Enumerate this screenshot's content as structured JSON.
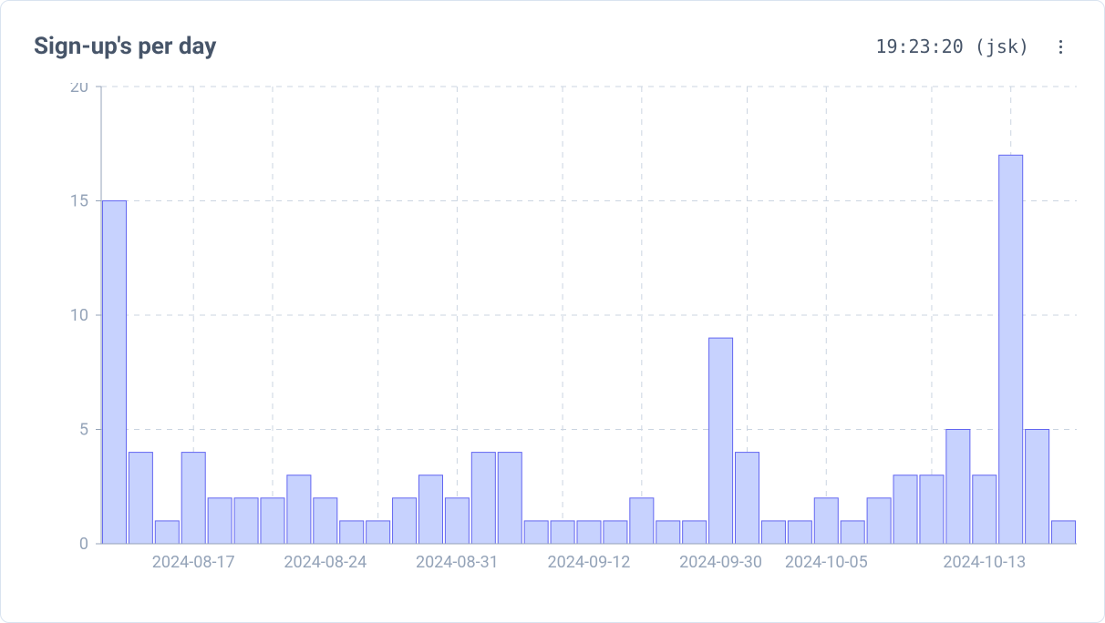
{
  "header": {
    "title": "Sign-up's per day",
    "timestamp": "19:23:20 (jsk)"
  },
  "chart": {
    "type": "bar",
    "y": {
      "lim": [
        0,
        20
      ],
      "ticks": [
        0,
        5,
        10,
        15,
        20
      ],
      "tick_fontsize": 18,
      "tick_color": "#94a3b8"
    },
    "x": {
      "tick_labels": [
        "2024-08-17",
        "2024-08-24",
        "2024-08-31",
        "2024-09-12",
        "2024-09-30",
        "2024-10-05",
        "2024-10-13"
      ],
      "tick_bar_indices": [
        3,
        8,
        13,
        18,
        23,
        27,
        33
      ],
      "tick_fontsize": 18,
      "tick_color": "#94a3b8"
    },
    "colors": {
      "background": "#ffffff",
      "card_border": "#d9e3f0",
      "grid": "#cbd5e1",
      "axis": "#94a3b8",
      "bar_fill": "#c7d2fe",
      "bar_stroke": "#6366f1",
      "title": "#475569",
      "timestamp": "#475569"
    },
    "bar_width_ratio": 0.9,
    "vgrid_bar_indices": [
      3,
      6,
      10,
      13,
      17,
      20,
      24,
      27,
      31,
      34
    ],
    "values": [
      15,
      4,
      1,
      4,
      2,
      2,
      2,
      3,
      2,
      1,
      1,
      2,
      3,
      2,
      4,
      4,
      1,
      1,
      1,
      1,
      2,
      1,
      1,
      9,
      4,
      1,
      1,
      2,
      1,
      2,
      3,
      3,
      5,
      3,
      17,
      5,
      1
    ]
  }
}
